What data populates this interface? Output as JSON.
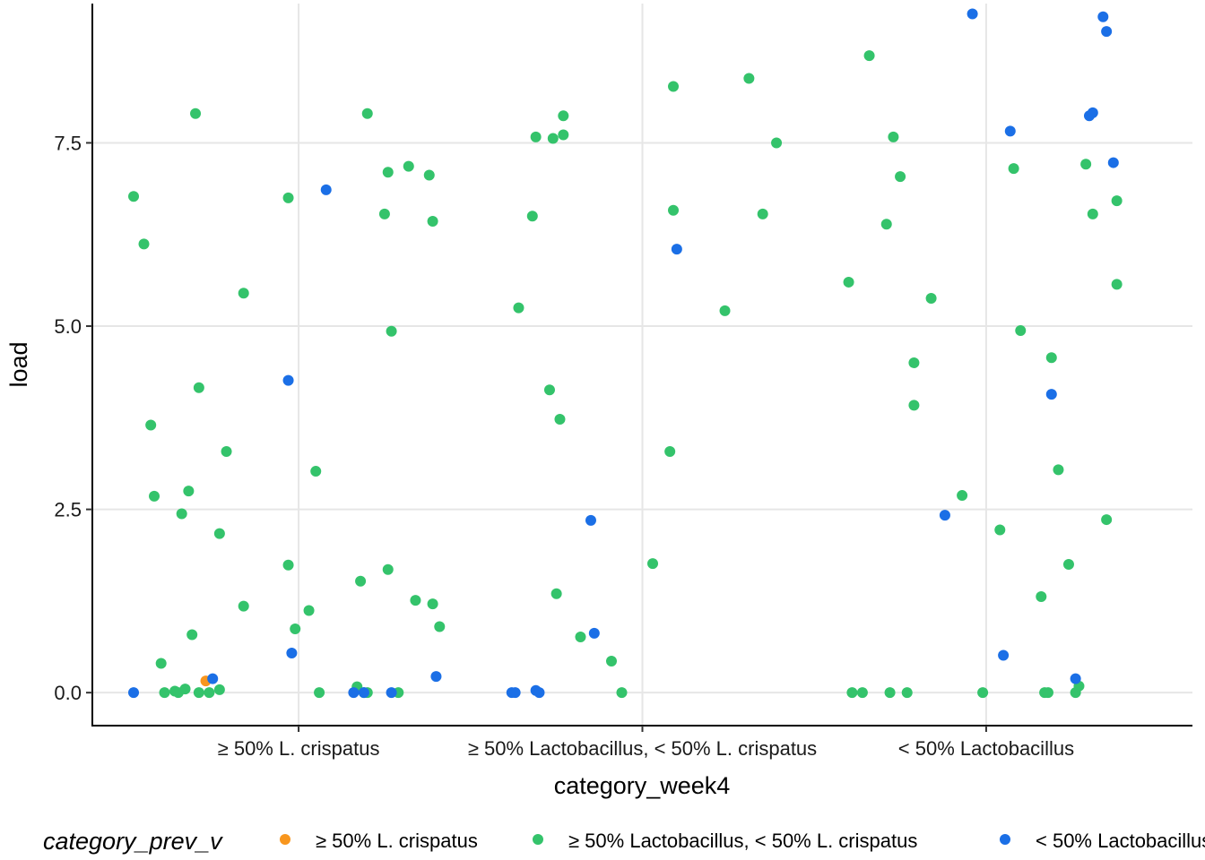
{
  "chart_data": {
    "type": "scatter",
    "xlabel": "category_week4",
    "ylabel": "load",
    "categories": [
      "≥ 50% L. crispatus",
      "≥ 50% Lactobacillus, < 50% L. crispatus",
      "< 50% Lactobacillus"
    ],
    "x_range": [
      0.4,
      3.6
    ],
    "ylim": [
      -0.45,
      9.4
    ],
    "y_ticks": [
      0.0,
      2.5,
      5.0,
      7.5
    ],
    "y_tick_labels": [
      "0.0",
      "2.5",
      "5.0",
      "7.5"
    ],
    "grid": true,
    "legend": {
      "title": "category_prev_v",
      "position": "bottom",
      "entries": [
        "≥ 50% L. crispatus",
        "≥ 50% Lactobacillus, < 50% L. crispatus",
        "< 50% Lactobacillus"
      ]
    },
    "colors": {
      "≥ 50% L. crispatus": "#f8961e",
      "≥ 50% Lactobacillus, < 50% L. crispatus": "#34c36b",
      "< 50% Lactobacillus": "#1b6fe6"
    },
    "series": [
      {
        "name": "≥ 50% L. crispatus",
        "points": [
          [
            0.73,
            0.16
          ]
        ]
      },
      {
        "name": "≥ 50% Lactobacillus, < 50% L. crispatus",
        "points": [
          [
            0.52,
            6.77
          ],
          [
            0.55,
            6.12
          ],
          [
            0.57,
            3.65
          ],
          [
            0.58,
            2.68
          ],
          [
            0.6,
            0.4
          ],
          [
            0.61,
            0.0
          ],
          [
            0.64,
            0.02
          ],
          [
            0.65,
            0.0
          ],
          [
            0.66,
            2.44
          ],
          [
            0.67,
            0.05
          ],
          [
            0.68,
            2.75
          ],
          [
            0.69,
            0.79
          ],
          [
            0.7,
            7.9
          ],
          [
            0.71,
            0.0
          ],
          [
            0.71,
            4.16
          ],
          [
            0.74,
            0.0
          ],
          [
            0.77,
            2.17
          ],
          [
            0.77,
            0.04
          ],
          [
            0.79,
            3.29
          ],
          [
            0.84,
            1.18
          ],
          [
            0.84,
            5.45
          ],
          [
            0.97,
            6.75
          ],
          [
            0.97,
            1.74
          ],
          [
            0.99,
            0.87
          ],
          [
            1.03,
            1.12
          ],
          [
            1.05,
            3.02
          ],
          [
            1.06,
            0.0
          ],
          [
            1.17,
            0.08
          ],
          [
            1.18,
            1.52
          ],
          [
            1.19,
            0.0
          ],
          [
            1.2,
            7.9
          ],
          [
            1.2,
            0.0
          ],
          [
            1.25,
            6.53
          ],
          [
            1.26,
            7.1
          ],
          [
            1.26,
            1.68
          ],
          [
            1.27,
            4.93
          ],
          [
            1.29,
            0.0
          ],
          [
            1.32,
            7.18
          ],
          [
            1.34,
            1.26
          ],
          [
            1.38,
            7.06
          ],
          [
            1.39,
            6.43
          ],
          [
            1.39,
            1.21
          ],
          [
            1.41,
            0.9
          ],
          [
            1.64,
            5.25
          ],
          [
            1.68,
            6.5
          ],
          [
            1.69,
            7.58
          ],
          [
            1.73,
            4.13
          ],
          [
            1.74,
            7.56
          ],
          [
            1.75,
            1.35
          ],
          [
            1.76,
            3.73
          ],
          [
            1.77,
            7.61
          ],
          [
            1.77,
            7.87
          ],
          [
            1.82,
            0.76
          ],
          [
            1.91,
            0.43
          ],
          [
            1.94,
            0.0
          ],
          [
            2.03,
            1.76
          ],
          [
            2.08,
            3.29
          ],
          [
            2.09,
            8.27
          ],
          [
            2.09,
            6.58
          ],
          [
            2.24,
            5.21
          ],
          [
            2.31,
            8.38
          ],
          [
            2.35,
            6.53
          ],
          [
            2.39,
            7.5
          ],
          [
            2.6,
            5.6
          ],
          [
            2.61,
            0.0
          ],
          [
            2.64,
            0.0
          ],
          [
            2.66,
            8.69
          ],
          [
            2.71,
            6.39
          ],
          [
            2.72,
            0.0
          ],
          [
            2.73,
            7.58
          ],
          [
            2.75,
            7.04
          ],
          [
            2.77,
            0.0
          ],
          [
            2.79,
            4.5
          ],
          [
            2.79,
            3.92
          ],
          [
            2.84,
            5.38
          ],
          [
            2.93,
            2.69
          ],
          [
            2.99,
            0.0
          ],
          [
            3.04,
            2.22
          ],
          [
            3.08,
            7.15
          ],
          [
            3.1,
            4.94
          ],
          [
            3.16,
            1.31
          ],
          [
            3.17,
            0.0
          ],
          [
            3.18,
            0.0
          ],
          [
            3.19,
            4.57
          ],
          [
            3.21,
            3.04
          ],
          [
            3.24,
            1.75
          ],
          [
            3.26,
            0.0
          ],
          [
            3.27,
            0.09
          ],
          [
            3.29,
            7.21
          ],
          [
            3.31,
            6.53
          ],
          [
            3.35,
            2.36
          ],
          [
            3.38,
            5.57
          ],
          [
            3.38,
            6.71
          ]
        ]
      },
      {
        "name": "< 50% Lactobacillus",
        "points": [
          [
            0.52,
            0.0
          ],
          [
            0.75,
            0.19
          ],
          [
            0.97,
            4.26
          ],
          [
            0.98,
            0.54
          ],
          [
            1.08,
            6.86
          ],
          [
            1.16,
            0.0
          ],
          [
            1.19,
            0.0
          ],
          [
            1.27,
            0.0
          ],
          [
            1.4,
            0.22
          ],
          [
            1.62,
            0.0
          ],
          [
            1.63,
            0.0
          ],
          [
            1.69,
            0.03
          ],
          [
            1.7,
            0.0
          ],
          [
            1.85,
            2.35
          ],
          [
            1.86,
            0.81
          ],
          [
            2.1,
            6.05
          ],
          [
            2.88,
            2.42
          ],
          [
            2.96,
            9.26
          ],
          [
            3.05,
            0.51
          ],
          [
            3.07,
            7.66
          ],
          [
            3.19,
            4.07
          ],
          [
            3.26,
            0.19
          ],
          [
            3.3,
            7.87
          ],
          [
            3.31,
            7.91
          ],
          [
            3.34,
            9.22
          ],
          [
            3.35,
            9.02
          ],
          [
            3.37,
            7.23
          ]
        ]
      }
    ]
  }
}
